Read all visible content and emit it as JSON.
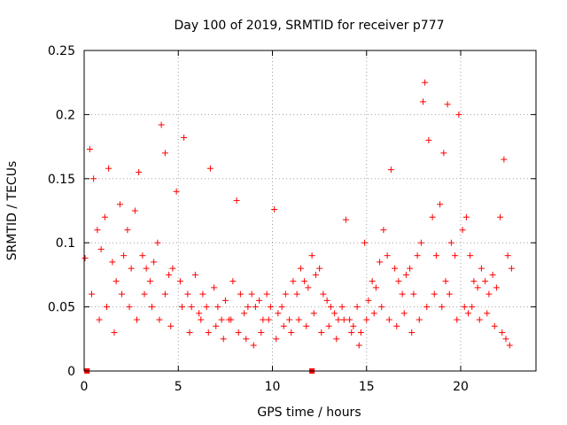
{
  "chart_data": {
    "type": "scatter",
    "title": "Day 100 of 2019, SRMTID for receiver p777",
    "xlabel": "GPS time / hours",
    "ylabel": "SRMTID / TECUs",
    "xlim": [
      0,
      24
    ],
    "ylim": [
      0,
      0.25
    ],
    "xticks": [
      0,
      5,
      10,
      15,
      20
    ],
    "yticks": [
      0,
      0.05,
      0.1,
      0.15,
      0.2,
      0.25
    ],
    "xtick_labels": [
      "0",
      "5",
      "10",
      "15",
      "20"
    ],
    "ytick_labels": [
      "0",
      "0.05",
      "0.1",
      "0.15",
      "0.2",
      "0.25"
    ],
    "grid": true,
    "marker": "+",
    "color": "#ff0000",
    "series": [
      {
        "name": "SRMTID",
        "x": [
          0.05,
          0.3,
          0.5,
          0.7,
          0.9,
          1.1,
          1.3,
          1.5,
          1.7,
          1.9,
          2.1,
          2.3,
          2.5,
          2.7,
          2.9,
          3.1,
          3.3,
          3.5,
          3.7,
          3.9,
          4.1,
          4.3,
          4.5,
          4.7,
          4.9,
          5.1,
          5.3,
          5.5,
          5.7,
          5.9,
          6.1,
          6.3,
          6.5,
          6.7,
          6.9,
          7.1,
          7.3,
          7.5,
          7.7,
          7.9,
          8.1,
          8.3,
          8.5,
          8.7,
          8.9,
          9.1,
          9.3,
          9.5,
          9.7,
          9.9,
          10.1,
          10.3,
          10.5,
          10.7,
          10.9,
          11.1,
          11.3,
          11.5,
          11.7,
          11.9,
          12.1,
          12.3,
          12.5,
          12.7,
          12.9,
          13.1,
          13.3,
          13.5,
          13.7,
          13.9,
          14.1,
          14.3,
          14.5,
          14.7,
          14.9,
          15.1,
          15.3,
          15.5,
          15.7,
          15.9,
          16.1,
          16.3,
          16.5,
          16.7,
          16.9,
          17.1,
          17.3,
          17.5,
          17.7,
          17.9,
          18.1,
          18.3,
          18.5,
          18.7,
          18.9,
          19.1,
          19.3,
          19.5,
          19.7,
          19.9,
          20.1,
          20.3,
          20.5,
          20.7,
          20.9,
          21.1,
          21.3,
          21.5,
          21.7,
          21.9,
          22.1,
          22.3,
          22.5,
          22.7,
          0.4,
          0.8,
          1.2,
          1.6,
          2.0,
          2.4,
          2.8,
          3.2,
          3.6,
          4.0,
          4.3,
          4.6,
          5.2,
          5.6,
          6.2,
          6.6,
          7.0,
          7.4,
          7.8,
          8.2,
          8.6,
          9.0,
          9.4,
          9.8,
          10.2,
          10.6,
          11.0,
          11.4,
          11.8,
          12.2,
          12.6,
          13.0,
          13.4,
          13.8,
          14.2,
          14.6,
          15.0,
          15.4,
          15.8,
          16.2,
          16.6,
          17.0,
          17.4,
          17.8,
          18.0,
          18.2,
          18.6,
          19.0,
          19.2,
          19.4,
          19.8,
          20.2,
          20.4,
          20.6,
          21.0,
          21.4,
          21.8,
          22.2,
          22.4,
          22.6
        ],
        "y": [
          0.088,
          0.173,
          0.15,
          0.11,
          0.095,
          0.12,
          0.158,
          0.085,
          0.07,
          0.13,
          0.09,
          0.11,
          0.08,
          0.125,
          0.155,
          0.09,
          0.08,
          0.07,
          0.085,
          0.1,
          0.192,
          0.17,
          0.075,
          0.08,
          0.14,
          0.07,
          0.182,
          0.06,
          0.05,
          0.075,
          0.045,
          0.06,
          0.05,
          0.158,
          0.065,
          0.05,
          0.04,
          0.055,
          0.04,
          0.07,
          0.133,
          0.06,
          0.045,
          0.05,
          0.06,
          0.05,
          0.055,
          0.04,
          0.06,
          0.05,
          0.126,
          0.045,
          0.05,
          0.06,
          0.04,
          0.07,
          0.06,
          0.08,
          0.07,
          0.065,
          0.09,
          0.075,
          0.08,
          0.06,
          0.055,
          0.05,
          0.045,
          0.04,
          0.05,
          0.118,
          0.04,
          0.035,
          0.05,
          0.03,
          0.1,
          0.055,
          0.07,
          0.065,
          0.085,
          0.11,
          0.09,
          0.157,
          0.08,
          0.07,
          0.06,
          0.075,
          0.08,
          0.06,
          0.09,
          0.1,
          0.225,
          0.18,
          0.12,
          0.09,
          0.13,
          0.17,
          0.208,
          0.1,
          0.09,
          0.2,
          0.11,
          0.12,
          0.09,
          0.07,
          0.065,
          0.08,
          0.07,
          0.06,
          0.075,
          0.065,
          0.12,
          0.165,
          0.09,
          0.08,
          0.06,
          0.04,
          0.05,
          0.03,
          0.06,
          0.05,
          0.04,
          0.06,
          0.05,
          0.04,
          0.06,
          0.035,
          0.05,
          0.03,
          0.04,
          0.03,
          0.035,
          0.025,
          0.04,
          0.03,
          0.025,
          0.02,
          0.03,
          0.04,
          0.025,
          0.035,
          0.03,
          0.04,
          0.035,
          0.045,
          0.03,
          0.035,
          0.025,
          0.04,
          0.03,
          0.02,
          0.04,
          0.045,
          0.05,
          0.04,
          0.035,
          0.045,
          0.03,
          0.04,
          0.21,
          0.05,
          0.06,
          0.05,
          0.07,
          0.06,
          0.04,
          0.05,
          0.045,
          0.05,
          0.04,
          0.045,
          0.035,
          0.03,
          0.025,
          0.02
        ]
      }
    ],
    "special_points": [
      [
        0.15,
        0.0
      ],
      [
        12.1,
        0.0
      ]
    ]
  }
}
